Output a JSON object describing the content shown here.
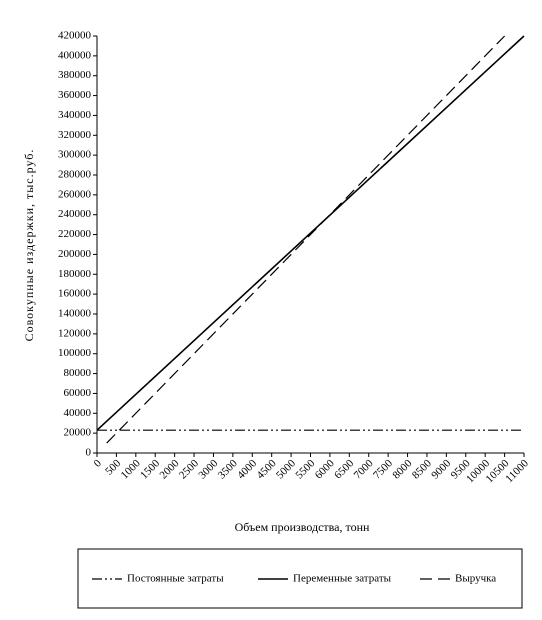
{
  "chart_data": {
    "type": "line",
    "xlabel": "Объем производства, тонн",
    "ylabel": "Совокупные издержки, тыс.руб.",
    "xlim": [
      0,
      11000
    ],
    "xticks": [
      0,
      500,
      1000,
      1500,
      2000,
      2500,
      3000,
      3500,
      4000,
      4500,
      5000,
      5500,
      6000,
      6500,
      7000,
      7500,
      8000,
      8500,
      9000,
      9500,
      10000,
      10500,
      11000
    ],
    "ylim": [
      0,
      420000
    ],
    "yticks": [
      0,
      20000,
      40000,
      60000,
      80000,
      100000,
      120000,
      140000,
      160000,
      180000,
      200000,
      220000,
      240000,
      260000,
      280000,
      300000,
      320000,
      340000,
      360000,
      380000,
      400000,
      420000
    ],
    "grid": false,
    "legend": "bottom",
    "series": [
      {
        "name": "Постоянные затраты",
        "color": "#000000",
        "dash": "dash-dot-dot",
        "x": [
          0,
          11000
        ],
        "values": [
          23000,
          23000
        ]
      },
      {
        "name": "Переменные затраты",
        "color": "#000000",
        "dash": "solid",
        "x": [
          0,
          11000
        ],
        "values": [
          23000,
          420000
        ]
      },
      {
        "name": "Выручка",
        "color": "#000000",
        "dash": "dashed",
        "x": [
          250,
          10500
        ],
        "values": [
          10000,
          420000
        ]
      }
    ]
  }
}
